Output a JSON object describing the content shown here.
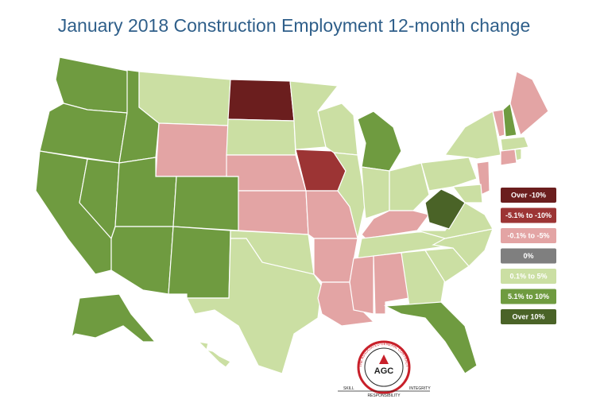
{
  "title": "January 2018 Construction Employment 12-month change",
  "legend": [
    {
      "label": "Over -10%",
      "color": "#6b1e1e"
    },
    {
      "label": "-5.1% to -10%",
      "color": "#9c3434"
    },
    {
      "label": "-0.1% to -5%",
      "color": "#e3a4a4"
    },
    {
      "label": "0%",
      "color": "#7f7f7f"
    },
    {
      "label": "0.1% to 5%",
      "color": "#cbdfa3"
    },
    {
      "label": "5.1% to 10%",
      "color": "#6f9b40"
    },
    {
      "label": "Over 10%",
      "color": "#4a6327"
    }
  ],
  "states": [
    {
      "category": 5
    },
    {
      "category": 5
    },
    {
      "category": 5
    },
    {
      "category": 5
    },
    {
      "category": 5
    },
    {
      "category": 4
    },
    {
      "category": 2
    },
    {
      "category": 5
    },
    {
      "category": 5
    },
    {
      "category": 5
    },
    {
      "category": 5
    },
    {
      "category": 0
    },
    {
      "category": 4
    },
    {
      "category": 2
    },
    {
      "category": 2
    },
    {
      "category": 4
    },
    {
      "category": 4
    },
    {
      "category": 4
    },
    {
      "category": 1
    },
    {
      "category": 2
    },
    {
      "category": 2
    },
    {
      "category": 2
    },
    {
      "category": 4
    },
    {
      "category": 4
    },
    {
      "category": 5
    },
    {
      "category": 4
    },
    {
      "category": 4
    },
    {
      "category": 2
    },
    {
      "category": 4
    },
    {
      "category": 2
    },
    {
      "category": 2
    },
    {
      "category": 4
    },
    {
      "category": 5
    },
    {
      "category": 4
    },
    {
      "category": 4
    },
    {
      "category": 4
    },
    {
      "category": 6
    },
    {
      "category": 4
    },
    {
      "category": 4
    },
    {
      "category": 2
    },
    {
      "category": 5
    },
    {
      "category": 2
    },
    {
      "category": 4
    },
    {
      "category": 2
    },
    {
      "category": 4
    },
    {
      "category": 2
    },
    {
      "category": 4
    },
    {
      "category": 5
    },
    {
      "category": 4
    }
  ],
  "logo": {
    "letters": "AGC",
    "ring": "THE ASSOCIATED GENERAL CONTRACTORS OF AMERICA",
    "left": "SKILL",
    "bottom": "RESPONSIBILITY",
    "right": "INTEGRITY"
  }
}
